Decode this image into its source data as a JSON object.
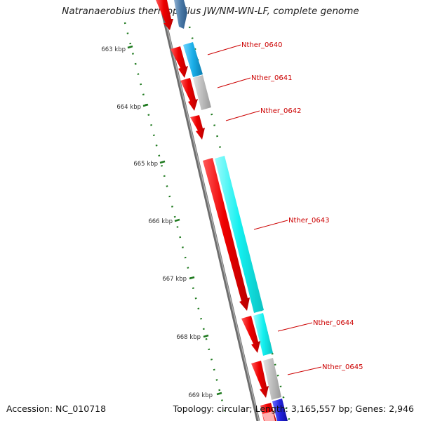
{
  "header": {
    "title": "Natranaerobius thermophilus JW/NM-WN-LF, complete genome"
  },
  "footer": {
    "accession": "Accession: NC_010718",
    "summary": "Topology: circular; Length: 3,165,557 bp; Genes: 2,946"
  },
  "axis": {
    "tick_labels": [
      "663 kbp",
      "664 kbp",
      "665 kbp",
      "666 kbp",
      "667 kbp",
      "668 kbp",
      "669 kbp"
    ]
  },
  "genes": [
    {
      "label": "Nther_0640"
    },
    {
      "label": "Nther_0641"
    },
    {
      "label": "Nther_0642"
    },
    {
      "label": "Nther_0643"
    },
    {
      "label": "Nther_0644"
    },
    {
      "label": "Nther_0645"
    }
  ],
  "colors": {
    "backbone": "#8a8a8a",
    "cds": "#ee0000",
    "label": "#cc0000",
    "tick": "#1f7a1f",
    "feature_blue": "#1aaee8",
    "feature_gray": "#bdbdbd",
    "feature_cyan": "#14f0f0",
    "feature_dark_blue": "#2222dd"
  }
}
